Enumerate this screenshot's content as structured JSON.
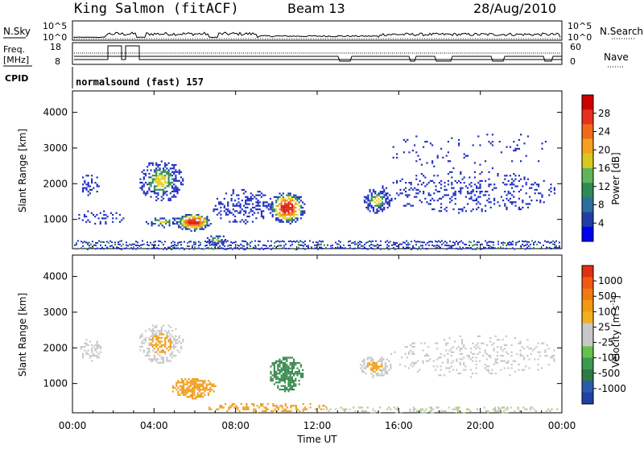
{
  "header": {
    "station": "King Salmon (fitACF)",
    "beam": "Beam 13",
    "date": "28/Aug/2010"
  },
  "side_labels": {
    "nsky": "N.Sky",
    "freq": "Freq.",
    "freq_unit": "[MHz]",
    "cpid": "CPID",
    "nsearch": "N.Search",
    "nave": "Nave"
  },
  "cpid_text": "normalsound (fast) 157",
  "panel_axes": {
    "noise_ticks": [
      "10^5",
      "10^0"
    ],
    "freq_ticks": [
      "18",
      "8"
    ],
    "nave_ticks": [
      "60",
      "0"
    ]
  },
  "chart_data": [
    {
      "type": "heatmap",
      "name": "power",
      "ylabel": "Slant Range [km]",
      "xlabel": "",
      "x_range": [
        0,
        24
      ],
      "ylim": [
        180,
        4600
      ],
      "x_ticks": [
        "00:00",
        "04:00",
        "08:00",
        "12:00",
        "16:00",
        "20:00",
        "00:00"
      ],
      "y_ticks": [
        1000,
        2000,
        3000,
        4000
      ],
      "colorbar": {
        "label": "Power [dB]",
        "ticks": [
          "28",
          "24",
          "20",
          "16",
          "12",
          "8",
          "4"
        ],
        "colors": [
          "#0000ee",
          "#1f3ea8",
          "#2d6f9c",
          "#2e8b57",
          "#5fb55a",
          "#d8c81e",
          "#f5a020",
          "#f06a1a",
          "#e83020",
          "#d00000"
        ]
      }
    },
    {
      "type": "heatmap",
      "name": "velocity",
      "ylabel": "Slant Range [km]",
      "xlabel": "Time UT",
      "x_range": [
        0,
        24
      ],
      "ylim": [
        180,
        4600
      ],
      "x_ticks": [
        "00:00",
        "04:00",
        "08:00",
        "12:00",
        "16:00",
        "20:00",
        "00:00"
      ],
      "y_ticks": [
        1000,
        2000,
        3000,
        4000
      ],
      "colorbar": {
        "label": "Velocity [m s",
        "label_sup": "-1",
        "label_end": "]",
        "ticks": [
          "1000",
          "500",
          "100",
          "25",
          "-25",
          "-100",
          "-500",
          "-1000"
        ],
        "colors": [
          "#2040a8",
          "#2a5ab0",
          "#2f7a45",
          "#3c9a50",
          "#64c24a",
          "#c8c8c8",
          "#c8c8c8",
          "#f0b020",
          "#f09a10",
          "#f07a10",
          "#f05a10",
          "#e03010"
        ]
      }
    }
  ],
  "colors": {
    "power_blue": "#2030c0",
    "power_green": "#2e8b57",
    "power_yellow": "#e8d020",
    "power_orange": "#f08020",
    "power_red": "#e02010",
    "vel_grey": "#c8c8c8",
    "vel_orange": "#f0a020",
    "vel_green": "#3a8a50"
  }
}
